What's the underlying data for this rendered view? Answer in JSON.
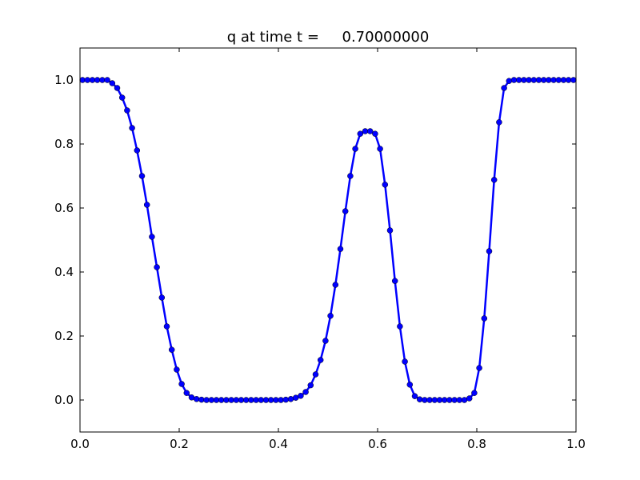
{
  "chart_data": {
    "type": "line",
    "title": "q at time t =     0.70000000",
    "x": [
      0.005,
      0.015,
      0.025,
      0.035,
      0.045,
      0.055,
      0.065,
      0.075,
      0.085,
      0.095,
      0.105,
      0.115,
      0.125,
      0.135,
      0.145,
      0.155,
      0.165,
      0.175,
      0.185,
      0.195,
      0.205,
      0.215,
      0.225,
      0.235,
      0.245,
      0.255,
      0.265,
      0.275,
      0.285,
      0.295,
      0.305,
      0.315,
      0.325,
      0.335,
      0.345,
      0.355,
      0.365,
      0.375,
      0.385,
      0.395,
      0.405,
      0.415,
      0.425,
      0.435,
      0.445,
      0.455,
      0.465,
      0.475,
      0.485,
      0.495,
      0.505,
      0.515,
      0.525,
      0.535,
      0.545,
      0.555,
      0.565,
      0.575,
      0.585,
      0.595,
      0.605,
      0.615,
      0.625,
      0.635,
      0.645,
      0.655,
      0.665,
      0.675,
      0.685,
      0.695,
      0.705,
      0.715,
      0.725,
      0.735,
      0.745,
      0.755,
      0.765,
      0.775,
      0.785,
      0.795,
      0.805,
      0.815,
      0.825,
      0.835,
      0.845,
      0.855,
      0.865,
      0.875,
      0.885,
      0.895,
      0.905,
      0.915,
      0.925,
      0.935,
      0.945,
      0.955,
      0.965,
      0.975,
      0.985,
      0.995
    ],
    "series": [
      {
        "name": "q",
        "color": "#0000ff",
        "values": [
          1,
          1,
          1,
          1,
          1,
          1,
          0.99,
          0.975,
          0.945,
          0.905,
          0.85,
          0.78,
          0.7,
          0.61,
          0.51,
          0.415,
          0.32,
          0.23,
          0.157,
          0.095,
          0.05,
          0.022,
          0.008,
          0.003,
          0.001,
          0,
          0,
          0,
          0,
          0,
          0,
          0,
          0,
          0,
          0,
          0,
          0,
          0,
          0,
          0,
          0,
          0.001,
          0.003,
          0.007,
          0.013,
          0.025,
          0.046,
          0.08,
          0.125,
          0.185,
          0.263,
          0.36,
          0.472,
          0.59,
          0.7,
          0.785,
          0.832,
          0.84,
          0.84,
          0.832,
          0.785,
          0.673,
          0.53,
          0.372,
          0.23,
          0.12,
          0.048,
          0.012,
          0.002,
          0,
          0,
          0,
          0,
          0,
          0,
          0,
          0,
          0,
          0.005,
          0.022,
          0.1,
          0.255,
          0.465,
          0.688,
          0.868,
          0.975,
          0.997,
          1,
          1,
          1,
          1,
          1,
          1,
          1,
          1,
          1,
          1,
          1,
          1,
          1
        ]
      }
    ],
    "xlim": [
      0,
      1
    ],
    "ylim": [
      -0.1,
      1.1
    ],
    "xticks": [
      {
        "value": 0,
        "label": "0.0"
      },
      0.2,
      0.4,
      0.6,
      0.8,
      {
        "value": 1,
        "label": "1.0"
      }
    ],
    "yticks": [
      {
        "value": 0,
        "label": "0.0"
      },
      0.2,
      0.4,
      0.6,
      0.8,
      {
        "value": 1,
        "label": "1.0"
      }
    ]
  }
}
